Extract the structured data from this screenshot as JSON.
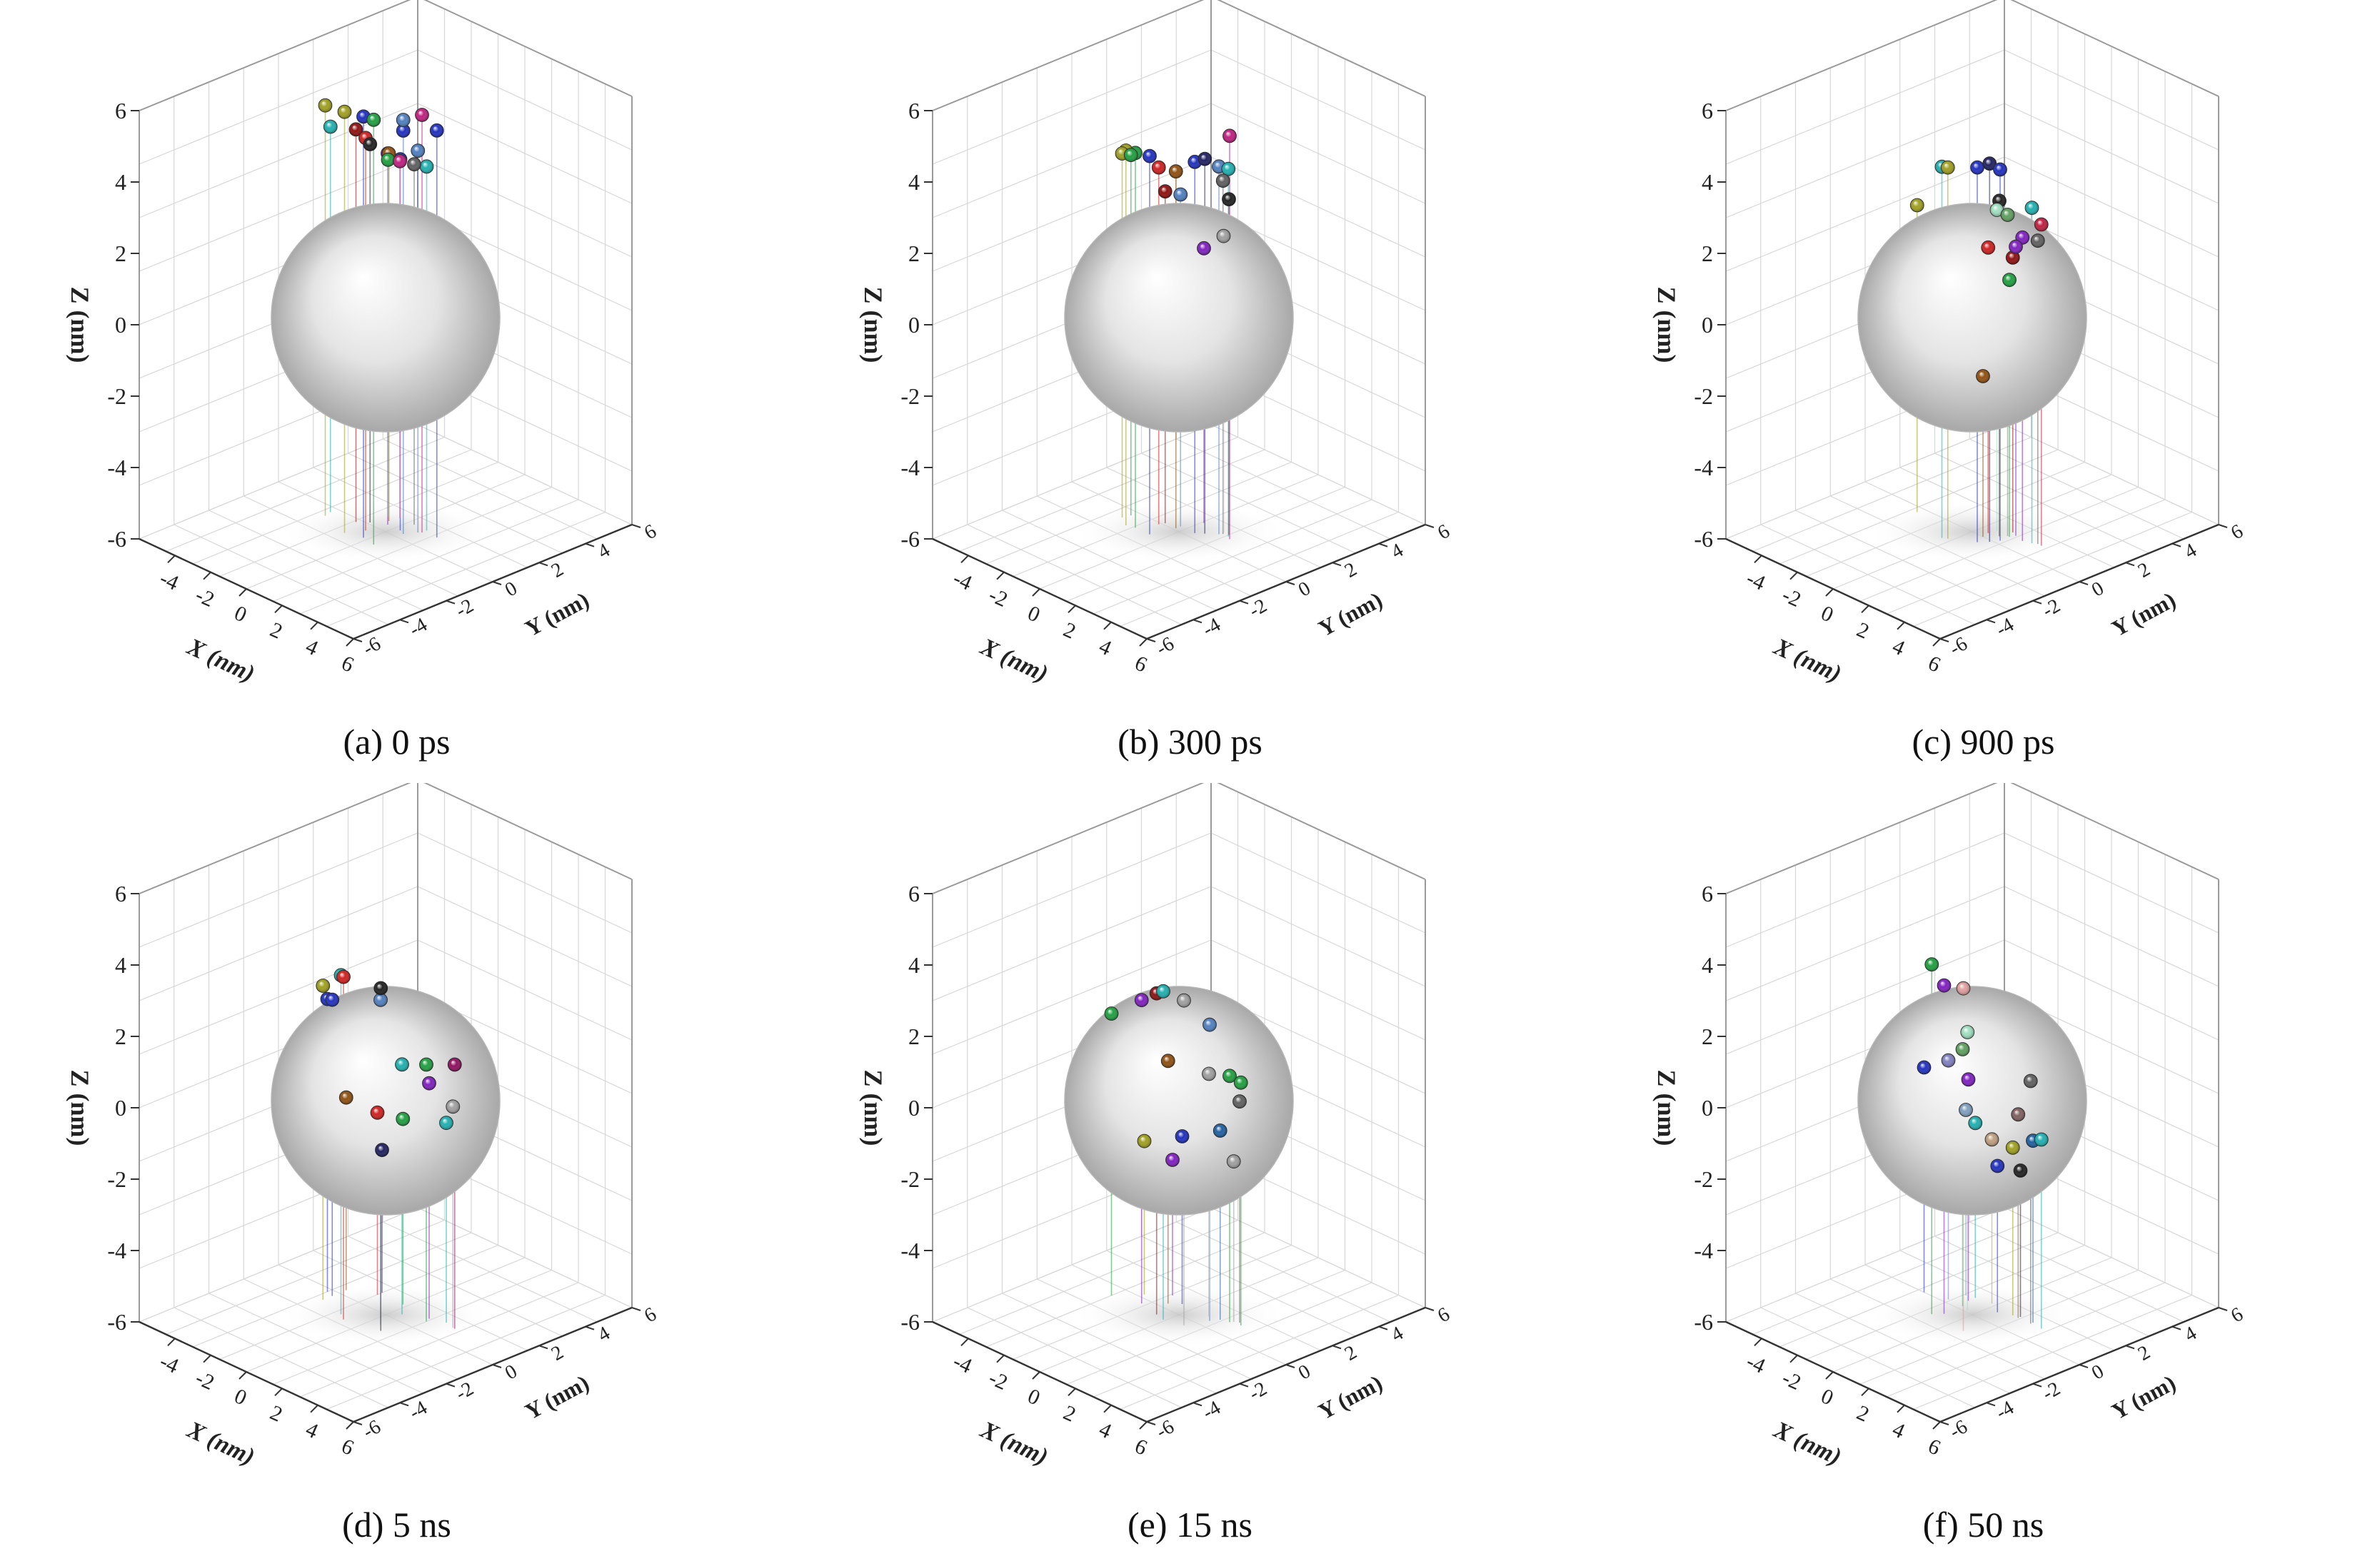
{
  "figure": {
    "axis_labels": {
      "x": "X (nm)",
      "y": "Y (nm)",
      "z": "Z (nm)"
    },
    "z_ticks": [
      "6",
      "4",
      "2",
      "0",
      "-2",
      "-4",
      "-6"
    ],
    "x_ticks": [
      "-4",
      "-2",
      "0",
      "2",
      "4",
      "6"
    ],
    "y_ticks": [
      "-6",
      "-4",
      "-2",
      "0",
      "2",
      "4",
      "6"
    ]
  },
  "chart_data": [
    {
      "type": "scatter",
      "caption": "(a) 0 ps",
      "xlabel": "X (nm)",
      "ylabel": "Y (nm)",
      "zlabel": "Z (nm)",
      "xlim": [
        -6,
        6
      ],
      "ylim": [
        -6,
        6
      ],
      "zlim": [
        -6,
        6
      ],
      "sphere": {
        "center": [
          0,
          0,
          0
        ],
        "radius": 3.2
      },
      "points": [
        {
          "x": -1.0,
          "y": -1.0,
          "z": 5.8,
          "color": "#a0a020"
        },
        {
          "x": -0.2,
          "y": -0.8,
          "z": 5.8,
          "color": "#2030c0"
        },
        {
          "x": 0.5,
          "y": -0.9,
          "z": 5.9,
          "color": "#20a040"
        },
        {
          "x": -2.6,
          "y": -0.6,
          "z": 5.5,
          "color": "#a0a020"
        },
        {
          "x": -2.7,
          "y": -0.3,
          "z": 4.8,
          "color": "#20b0b0"
        },
        {
          "x": -1.4,
          "y": -0.2,
          "z": 5.0,
          "color": "#901010"
        },
        {
          "x": -0.6,
          "y": -0.4,
          "z": 5.0,
          "color": "#d02020"
        },
        {
          "x": -1.0,
          "y": 0.1,
          "z": 4.6,
          "color": "#202020"
        },
        {
          "x": 0.6,
          "y": 0.3,
          "z": 5.3,
          "color": "#2030c0"
        },
        {
          "x": 0.6,
          "y": 0.3,
          "z": 5.6,
          "color": "#5080c0"
        },
        {
          "x": 1.0,
          "y": 0.8,
          "z": 5.7,
          "color": "#c02080"
        },
        {
          "x": 1.7,
          "y": 0.9,
          "z": 5.4,
          "color": "#2030c0"
        },
        {
          "x": -0.4,
          "y": 0.4,
          "z": 4.4,
          "color": "#8020c0"
        },
        {
          "x": 0.3,
          "y": 0.4,
          "z": 4.4,
          "color": "#2030c0"
        },
        {
          "x": 0.9,
          "y": 0.7,
          "z": 4.7,
          "color": "#5080c0"
        },
        {
          "x": 1.0,
          "y": 1.0,
          "z": 4.2,
          "color": "#20b0b0"
        },
        {
          "x": -0.6,
          "y": 0.6,
          "z": 4.3,
          "color": "#905010"
        },
        {
          "x": -0.9,
          "y": 0.8,
          "z": 4.0,
          "color": "#20a040"
        },
        {
          "x": -0.5,
          "y": 1.0,
          "z": 4.0,
          "color": "#c02080"
        },
        {
          "x": 0.3,
          "y": 1.0,
          "z": 4.1,
          "color": "#606060"
        }
      ]
    },
    {
      "type": "scatter",
      "caption": "(b) 300 ps",
      "xlabel": "X (nm)",
      "ylabel": "Y (nm)",
      "zlabel": "Z (nm)",
      "xlim": [
        -6,
        6
      ],
      "ylim": [
        -6,
        6
      ],
      "zlim": [
        -6,
        6
      ],
      "sphere": {
        "center": [
          0,
          0,
          0
        ],
        "radius": 3.2
      },
      "points": [
        {
          "x": -1.4,
          "y": -0.8,
          "z": 4.5,
          "color": "#20a040"
        },
        {
          "x": -0.6,
          "y": -0.8,
          "z": 4.6,
          "color": "#2030c0"
        },
        {
          "x": -1.8,
          "y": -0.9,
          "z": 4.5,
          "color": "#a0a020"
        },
        {
          "x": -2.4,
          "y": -0.6,
          "z": 4.2,
          "color": "#a0a020"
        },
        {
          "x": -2.3,
          "y": -0.3,
          "z": 4.1,
          "color": "#20a040"
        },
        {
          "x": -1.0,
          "y": -0.1,
          "z": 4.0,
          "color": "#d02020"
        },
        {
          "x": 0.5,
          "y": 0.3,
          "z": 4.4,
          "color": "#2030c0"
        },
        {
          "x": 0.8,
          "y": 0.5,
          "z": 4.5,
          "color": "#202060"
        },
        {
          "x": 1.8,
          "y": 0.8,
          "z": 5.3,
          "color": "#c02080"
        },
        {
          "x": 1.2,
          "y": 0.8,
          "z": 4.3,
          "color": "#5080c0"
        },
        {
          "x": 1.6,
          "y": 0.9,
          "z": 4.3,
          "color": "#20b0b0"
        },
        {
          "x": -0.3,
          "y": 0.1,
          "z": 4.0,
          "color": "#905010"
        },
        {
          "x": 1.3,
          "y": 0.9,
          "z": 3.9,
          "color": "#606060"
        },
        {
          "x": -0.9,
          "y": 0.1,
          "z": 3.3,
          "color": "#901010"
        },
        {
          "x": -0.3,
          "y": 0.3,
          "z": 3.3,
          "color": "#5080c0"
        },
        {
          "x": 1.5,
          "y": 1.0,
          "z": 3.4,
          "color": "#202020"
        },
        {
          "x": 1.2,
          "y": 1.0,
          "z": 2.3,
          "color": "#a0a0a0"
        },
        {
          "x": 0.1,
          "y": 1.0,
          "z": 1.7,
          "color": "#8020c0"
        }
      ]
    },
    {
      "type": "scatter",
      "caption": "(c) 900 ps",
      "xlabel": "X (nm)",
      "ylabel": "Y (nm)",
      "zlabel": "Z (nm)",
      "xlim": [
        -6,
        6
      ],
      "ylim": [
        -6,
        6
      ],
      "zlim": [
        -6,
        6
      ],
      "sphere": {
        "center": [
          0,
          0,
          0
        ],
        "radius": 3.2
      },
      "points": [
        {
          "x": -0.4,
          "y": -1.0,
          "z": 4.4,
          "color": "#20b0b0"
        },
        {
          "x": -0.2,
          "y": -0.9,
          "z": 4.4,
          "color": "#a0a020"
        },
        {
          "x": 0.8,
          "y": -0.4,
          "z": 4.5,
          "color": "#2030c0"
        },
        {
          "x": 1.1,
          "y": -0.1,
          "z": 4.6,
          "color": "#202060"
        },
        {
          "x": 1.3,
          "y": 0.2,
          "z": 4.4,
          "color": "#2030c0"
        },
        {
          "x": -2.7,
          "y": -0.3,
          "z": 2.6,
          "color": "#a0a020"
        },
        {
          "x": 1.0,
          "y": 0.4,
          "z": 3.4,
          "color": "#202020"
        },
        {
          "x": 0.6,
          "y": 0.6,
          "z": 3.0,
          "color": "#a0e0c0"
        },
        {
          "x": 1.2,
          "y": 0.6,
          "z": 3.0,
          "color": "#60a060"
        },
        {
          "x": 2.3,
          "y": 0.8,
          "z": 3.4,
          "color": "#20b0b0"
        },
        {
          "x": 2.7,
          "y": 0.9,
          "z": 3.0,
          "color": "#c02040"
        },
        {
          "x": 0.5,
          "y": 0.3,
          "z": 2.0,
          "color": "#d02020"
        },
        {
          "x": 1.9,
          "y": 0.7,
          "z": 2.5,
          "color": "#8020c0"
        },
        {
          "x": 2.5,
          "y": 0.9,
          "z": 2.5,
          "color": "#606060"
        },
        {
          "x": 1.1,
          "y": 0.9,
          "z": 1.7,
          "color": "#901010"
        },
        {
          "x": 1.4,
          "y": 0.8,
          "z": 2.1,
          "color": "#8020c0"
        },
        {
          "x": 1.3,
          "y": 0.6,
          "z": 1.2,
          "color": "#20a040"
        },
        {
          "x": 0.6,
          "y": 0.0,
          "z": -1.5,
          "color": "#905010"
        }
      ]
    },
    {
      "type": "scatter",
      "caption": "(d) 5 ns",
      "xlabel": "X (nm)",
      "ylabel": "Y (nm)",
      "zlabel": "Z (nm)",
      "xlim": [
        -6,
        6
      ],
      "ylim": [
        -6,
        6
      ],
      "zlim": [
        -6,
        6
      ],
      "sphere": {
        "center": [
          0,
          0,
          0
        ],
        "radius": 3.2
      },
      "points": [
        {
          "x": -3.0,
          "y": -0.2,
          "z": 2.2,
          "color": "#2030c0"
        },
        {
          "x": -2.6,
          "y": -0.3,
          "z": 2.3,
          "color": "#2030c0"
        },
        {
          "x": -2.6,
          "y": -0.7,
          "z": 2.8,
          "color": "#a0a020"
        },
        {
          "x": -1.2,
          "y": -1.0,
          "z": 3.5,
          "color": "#20b0b0"
        },
        {
          "x": -0.8,
          "y": -1.2,
          "z": 3.6,
          "color": "#d02020"
        },
        {
          "x": 0.5,
          "y": -0.6,
          "z": 3.1,
          "color": "#5080c0"
        },
        {
          "x": 0.9,
          "y": -0.9,
          "z": 3.6,
          "color": "#202020"
        },
        {
          "x": 0.4,
          "y": 0.4,
          "z": 1.0,
          "color": "#20b0b0"
        },
        {
          "x": 1.5,
          "y": 0.6,
          "z": 1.2,
          "color": "#20a040"
        },
        {
          "x": 2.7,
          "y": 0.9,
          "z": 1.4,
          "color": "#901060"
        },
        {
          "x": 1.4,
          "y": 0.8,
          "z": 0.6,
          "color": "#8020c0"
        },
        {
          "x": 2.1,
          "y": 1.0,
          "z": -0.4,
          "color": "#20b0b0"
        },
        {
          "x": 2.6,
          "y": 0.9,
          "z": 0.2,
          "color": "#a0a0a0"
        },
        {
          "x": -2.6,
          "y": 0.3,
          "z": -0.6,
          "color": "#905010"
        },
        {
          "x": -1.5,
          "y": 0.8,
          "z": -0.9,
          "color": "#d02020"
        },
        {
          "x": -0.2,
          "y": 0.9,
          "z": -0.8,
          "color": "#20a040"
        },
        {
          "x": -1.5,
          "y": 1.0,
          "z": -2.0,
          "color": "#202060"
        }
      ]
    },
    {
      "type": "scatter",
      "caption": "(e) 15 ns",
      "xlabel": "X (nm)",
      "ylabel": "Y (nm)",
      "zlabel": "Z (nm)",
      "xlim": [
        -6,
        6
      ],
      "ylim": [
        -6,
        6
      ],
      "zlim": [
        -6,
        6
      ],
      "sphere": {
        "center": [
          0,
          0,
          0
        ],
        "radius": 3.2
      },
      "points": [
        {
          "x": -3.0,
          "y": -0.6,
          "z": 1.9,
          "color": "#20a040"
        },
        {
          "x": -1.7,
          "y": -0.3,
          "z": 2.5,
          "color": "#8020c0"
        },
        {
          "x": -0.6,
          "y": -0.5,
          "z": 3.0,
          "color": "#901010"
        },
        {
          "x": -0.1,
          "y": -0.6,
          "z": 3.2,
          "color": "#20b0b0"
        },
        {
          "x": 0.8,
          "y": -0.4,
          "z": 3.1,
          "color": "#a0a0a0"
        },
        {
          "x": 1.2,
          "y": 0.4,
          "z": 2.3,
          "color": "#5080c0"
        },
        {
          "x": -1.0,
          "y": 0.3,
          "z": 0.8,
          "color": "#905010"
        },
        {
          "x": 0.9,
          "y": 0.6,
          "z": 0.8,
          "color": "#a0a0a0"
        },
        {
          "x": 1.8,
          "y": 0.8,
          "z": 0.9,
          "color": "#20a040"
        },
        {
          "x": 2.3,
          "y": 0.9,
          "z": 0.8,
          "color": "#20a040"
        },
        {
          "x": 2.1,
          "y": 1.0,
          "z": 0.2,
          "color": "#606060"
        },
        {
          "x": 1.4,
          "y": 0.7,
          "z": -0.7,
          "color": "#2060a0"
        },
        {
          "x": -0.6,
          "y": 0.6,
          "z": -1.3,
          "color": "#2030c0"
        },
        {
          "x": 1.9,
          "y": 0.9,
          "z": -1.5,
          "color": "#a0a0a0"
        },
        {
          "x": -2.2,
          "y": 0.2,
          "z": -1.7,
          "color": "#a0a020"
        },
        {
          "x": -1.4,
          "y": 0.8,
          "z": -2.2,
          "color": "#8020c0"
        }
      ]
    },
    {
      "type": "scatter",
      "caption": "(f) 50 ns",
      "xlabel": "X (nm)",
      "ylabel": "Y (nm)",
      "zlabel": "Z (nm)",
      "xlim": [
        -6,
        6
      ],
      "ylim": [
        -6,
        6
      ],
      "zlim": [
        -6,
        6
      ],
      "sphere": {
        "center": [
          0,
          0,
          0
        ],
        "radius": 3.2
      },
      "points": [
        {
          "x": -1.1,
          "y": -0.9,
          "z": 3.8,
          "color": "#20a040"
        },
        {
          "x": -0.8,
          "y": -0.6,
          "z": 3.2,
          "color": "#8020c0"
        },
        {
          "x": 0.8,
          "y": -1.0,
          "z": 3.6,
          "color": "#e0a0a0"
        },
        {
          "x": -0.4,
          "y": 0.1,
          "z": 1.8,
          "color": "#a0e0c0"
        },
        {
          "x": -0.8,
          "y": 0.2,
          "z": 1.2,
          "color": "#60a060"
        },
        {
          "x": -1.6,
          "y": 0.2,
          "z": 0.7,
          "color": "#8080c0"
        },
        {
          "x": -1.0,
          "y": 0.6,
          "z": 0.2,
          "color": "#8020c0"
        },
        {
          "x": -2.7,
          "y": 0.0,
          "z": 0.3,
          "color": "#2030c0"
        },
        {
          "x": -1.4,
          "y": 0.8,
          "z": -0.8,
          "color": "#80a0c0"
        },
        {
          "x": -1.0,
          "y": 0.9,
          "z": -1.1,
          "color": "#20b0b0"
        },
        {
          "x": 2.1,
          "y": 0.9,
          "z": 0.8,
          "color": "#606060"
        },
        {
          "x": 1.4,
          "y": 0.9,
          "z": -0.3,
          "color": "#806060"
        },
        {
          "x": 2.1,
          "y": 1.0,
          "z": -0.9,
          "color": "#2060a0"
        },
        {
          "x": 2.7,
          "y": 0.9,
          "z": -0.7,
          "color": "#20b0b0"
        },
        {
          "x": 1.1,
          "y": 0.9,
          "z": -1.3,
          "color": "#a0a020"
        },
        {
          "x": 0.5,
          "y": 0.7,
          "z": -1.9,
          "color": "#2030c0"
        },
        {
          "x": 1.4,
          "y": 1.0,
          "z": -1.9,
          "color": "#202020"
        },
        {
          "x": -0.2,
          "y": 1.0,
          "z": -1.4,
          "color": "#c0a080"
        }
      ]
    }
  ]
}
